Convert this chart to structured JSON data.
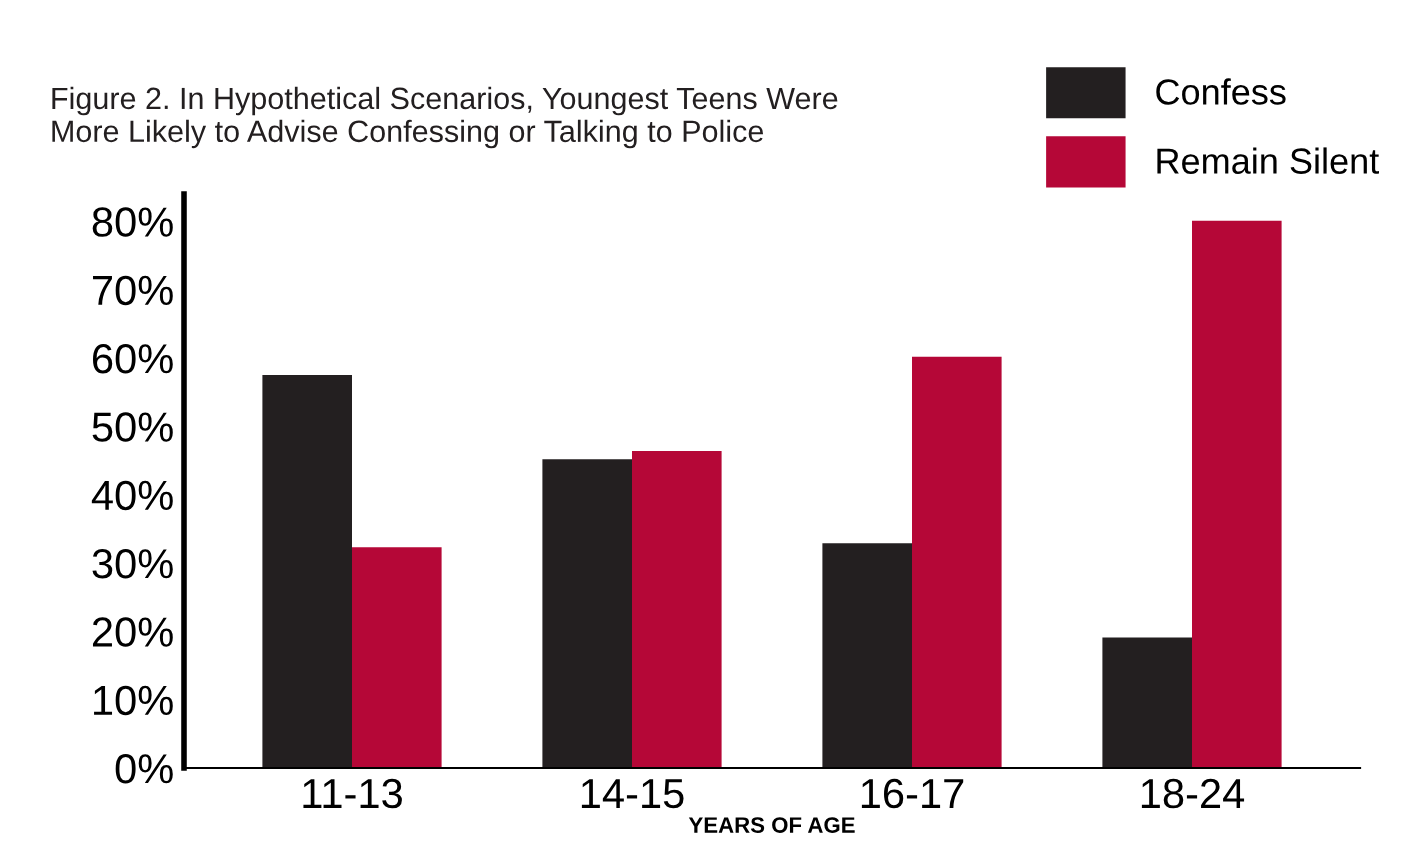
{
  "chart_data": {
    "type": "bar",
    "title": "Figure 2. In Hypothetical Scenarios, Youngest Teens Were\nMore Likely to Advise Confessing or Talking to Police",
    "xlabel": "YEARS OF AGE",
    "categories": [
      "11-13",
      "14-15",
      "16-17",
      "18-24"
    ],
    "series": [
      {
        "name": "Confess",
        "color": "#231f20",
        "values": [
          57.5,
          45.2,
          32.9,
          19.1
        ]
      },
      {
        "name": "Remain Silent",
        "color": "#b50737",
        "values": [
          32.3,
          46.4,
          60.2,
          80.1
        ]
      }
    ],
    "ylim": [
      0,
      84
    ],
    "yticks": [
      {
        "value": 0,
        "label": "0%"
      },
      {
        "value": 10,
        "label": "10%"
      },
      {
        "value": 20,
        "label": "20%"
      },
      {
        "value": 30,
        "label": "30%"
      },
      {
        "value": 40,
        "label": "40%"
      },
      {
        "value": 50,
        "label": "50%"
      },
      {
        "value": 60,
        "label": "60%"
      },
      {
        "value": 70,
        "label": "70%"
      },
      {
        "value": 80,
        "label": "80%"
      }
    ],
    "grid": false,
    "legend": "top right"
  }
}
